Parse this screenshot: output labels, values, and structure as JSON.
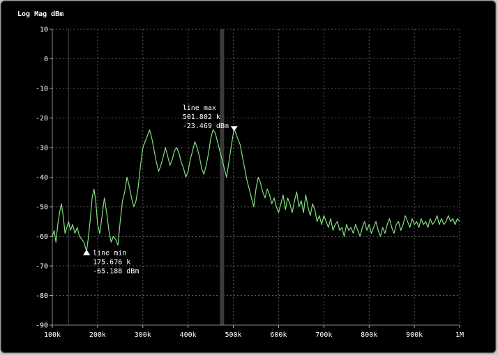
{
  "chart_data": {
    "type": "line",
    "title": "Log Mag dBm",
    "xlabel": "",
    "ylabel": "",
    "xlim": [
      100000,
      1000000
    ],
    "ylim": [
      -90,
      10
    ],
    "grid": true,
    "x_ticks": [
      100000,
      200000,
      300000,
      400000,
      500000,
      600000,
      700000,
      800000,
      900000,
      1000000
    ],
    "x_tick_labels": [
      "100k",
      "200k",
      "300k",
      "400k",
      "500k",
      "600k",
      "700k",
      "800k",
      "900k",
      "1M"
    ],
    "y_ticks": [
      10,
      0,
      -10,
      -20,
      -30,
      -40,
      -50,
      -60,
      -70,
      -80,
      -90
    ],
    "y_tick_labels": [
      "10",
      "0",
      "-10",
      "-20",
      "-30",
      "-40",
      "-50",
      "-60",
      "-70",
      "-80",
      "-90"
    ],
    "colors": {
      "trace": "#7fe07f",
      "grid": "#5a5a5a",
      "cursor": "#3a3a3a",
      "text": "#ffffff"
    },
    "vertical_lines": [
      {
        "x": 136000,
        "kind": "thin"
      },
      {
        "x": 475000,
        "kind": "band"
      }
    ],
    "series": [
      {
        "values": [
          [
            100000,
            -60
          ],
          [
            104000,
            -58
          ],
          [
            108000,
            -62
          ],
          [
            112000,
            -56
          ],
          [
            116000,
            -52
          ],
          [
            120000,
            -49
          ],
          [
            124000,
            -53
          ],
          [
            128000,
            -59
          ],
          [
            132000,
            -57
          ],
          [
            136000,
            -55
          ],
          [
            140000,
            -58
          ],
          [
            145000,
            -56
          ],
          [
            150000,
            -59
          ],
          [
            155000,
            -57
          ],
          [
            160000,
            -60
          ],
          [
            165000,
            -61
          ],
          [
            170000,
            -62
          ],
          [
            175676,
            -65.188
          ],
          [
            180000,
            -60
          ],
          [
            184000,
            -54
          ],
          [
            188000,
            -47
          ],
          [
            192000,
            -44
          ],
          [
            196000,
            -48
          ],
          [
            200000,
            -56
          ],
          [
            205000,
            -59
          ],
          [
            210000,
            -53
          ],
          [
            215000,
            -47
          ],
          [
            220000,
            -52
          ],
          [
            225000,
            -58
          ],
          [
            230000,
            -62
          ],
          [
            235000,
            -60
          ],
          [
            240000,
            -61
          ],
          [
            245000,
            -63
          ],
          [
            250000,
            -55
          ],
          [
            255000,
            -48
          ],
          [
            260000,
            -45
          ],
          [
            265000,
            -40
          ],
          [
            270000,
            -43
          ],
          [
            275000,
            -47
          ],
          [
            280000,
            -50
          ],
          [
            285000,
            -48
          ],
          [
            290000,
            -43
          ],
          [
            295000,
            -36
          ],
          [
            300000,
            -30
          ],
          [
            305000,
            -28
          ],
          [
            310000,
            -26
          ],
          [
            315000,
            -24
          ],
          [
            320000,
            -27
          ],
          [
            325000,
            -31
          ],
          [
            330000,
            -35
          ],
          [
            335000,
            -38
          ],
          [
            340000,
            -36
          ],
          [
            345000,
            -33
          ],
          [
            350000,
            -30
          ],
          [
            355000,
            -33
          ],
          [
            360000,
            -36
          ],
          [
            365000,
            -34
          ],
          [
            370000,
            -31
          ],
          [
            375000,
            -30
          ],
          [
            380000,
            -32
          ],
          [
            385000,
            -35
          ],
          [
            390000,
            -37
          ],
          [
            395000,
            -40
          ],
          [
            400000,
            -38
          ],
          [
            405000,
            -34
          ],
          [
            410000,
            -31
          ],
          [
            415000,
            -28
          ],
          [
            420000,
            -30
          ],
          [
            425000,
            -33
          ],
          [
            430000,
            -37
          ],
          [
            435000,
            -39
          ],
          [
            440000,
            -36
          ],
          [
            445000,
            -32
          ],
          [
            450000,
            -27
          ],
          [
            455000,
            -24
          ],
          [
            460000,
            -25
          ],
          [
            465000,
            -28
          ],
          [
            470000,
            -31
          ],
          [
            475000,
            -34
          ],
          [
            480000,
            -37
          ],
          [
            485000,
            -40
          ],
          [
            490000,
            -35
          ],
          [
            495000,
            -30
          ],
          [
            501802,
            -23.469
          ],
          [
            505000,
            -25
          ],
          [
            510000,
            -27
          ],
          [
            515000,
            -29
          ],
          [
            520000,
            -33
          ],
          [
            525000,
            -37
          ],
          [
            530000,
            -41
          ],
          [
            535000,
            -44
          ],
          [
            540000,
            -47
          ],
          [
            545000,
            -50
          ],
          [
            550000,
            -44
          ],
          [
            555000,
            -40
          ],
          [
            560000,
            -42
          ],
          [
            565000,
            -45
          ],
          [
            570000,
            -47
          ],
          [
            575000,
            -44
          ],
          [
            580000,
            -46
          ],
          [
            585000,
            -49
          ],
          [
            590000,
            -47
          ],
          [
            595000,
            -50
          ],
          [
            600000,
            -52
          ],
          [
            605000,
            -49
          ],
          [
            610000,
            -46
          ],
          [
            615000,
            -51
          ],
          [
            620000,
            -47
          ],
          [
            625000,
            -49
          ],
          [
            630000,
            -52
          ],
          [
            635000,
            -48
          ],
          [
            640000,
            -45
          ],
          [
            645000,
            -50
          ],
          [
            650000,
            -48
          ],
          [
            655000,
            -52
          ],
          [
            660000,
            -46
          ],
          [
            665000,
            -50
          ],
          [
            670000,
            -53
          ],
          [
            675000,
            -49
          ],
          [
            680000,
            -51
          ],
          [
            685000,
            -55
          ],
          [
            690000,
            -53
          ],
          [
            695000,
            -56
          ],
          [
            700000,
            -53
          ],
          [
            705000,
            -55
          ],
          [
            710000,
            -57
          ],
          [
            715000,
            -54
          ],
          [
            720000,
            -58
          ],
          [
            725000,
            -56
          ],
          [
            730000,
            -55
          ],
          [
            735000,
            -58
          ],
          [
            740000,
            -57
          ],
          [
            745000,
            -60
          ],
          [
            750000,
            -56
          ],
          [
            755000,
            -58
          ],
          [
            760000,
            -57
          ],
          [
            765000,
            -59
          ],
          [
            770000,
            -56
          ],
          [
            775000,
            -58
          ],
          [
            780000,
            -60
          ],
          [
            785000,
            -57
          ],
          [
            790000,
            -55
          ],
          [
            795000,
            -58
          ],
          [
            800000,
            -56
          ],
          [
            805000,
            -59
          ],
          [
            810000,
            -57
          ],
          [
            815000,
            -55
          ],
          [
            820000,
            -58
          ],
          [
            825000,
            -60
          ],
          [
            830000,
            -57
          ],
          [
            835000,
            -59
          ],
          [
            840000,
            -56
          ],
          [
            845000,
            -54
          ],
          [
            850000,
            -57
          ],
          [
            855000,
            -59
          ],
          [
            860000,
            -56
          ],
          [
            865000,
            -55
          ],
          [
            870000,
            -58
          ],
          [
            875000,
            -56
          ],
          [
            880000,
            -53
          ],
          [
            885000,
            -55
          ],
          [
            890000,
            -57
          ],
          [
            895000,
            -54
          ],
          [
            900000,
            -56
          ],
          [
            905000,
            -55
          ],
          [
            910000,
            -57
          ],
          [
            915000,
            -54
          ],
          [
            920000,
            -56
          ],
          [
            925000,
            -55
          ],
          [
            930000,
            -57
          ],
          [
            935000,
            -54
          ],
          [
            940000,
            -56
          ],
          [
            945000,
            -55
          ],
          [
            950000,
            -53
          ],
          [
            955000,
            -56
          ],
          [
            960000,
            -54
          ],
          [
            965000,
            -56
          ],
          [
            970000,
            -55
          ],
          [
            975000,
            -53
          ],
          [
            980000,
            -55
          ],
          [
            985000,
            -54
          ],
          [
            990000,
            -56
          ],
          [
            995000,
            -54
          ],
          [
            1000000,
            -55
          ]
        ]
      }
    ],
    "annotations": [
      {
        "name": "line-max-annotation",
        "x": 501802,
        "y": -23.469,
        "lines": [
          "line max",
          "501.802 k",
          "-23.469 dBm"
        ],
        "marker": "down"
      },
      {
        "name": "line-min-annotation",
        "x": 175676,
        "y": -65.188,
        "lines": [
          "line min",
          "175.676 k",
          "-65.188 dBm"
        ],
        "marker": "up"
      }
    ]
  }
}
